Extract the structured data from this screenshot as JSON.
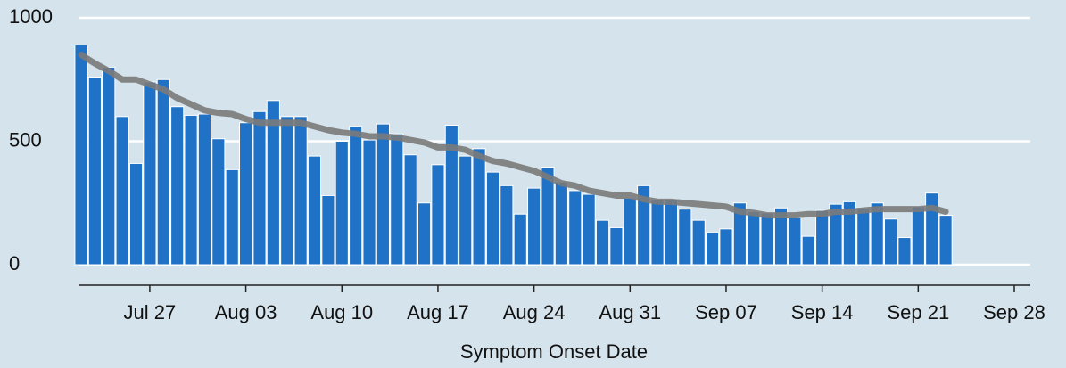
{
  "chart_data": {
    "type": "bar",
    "xlabel": "Symptom Onset Date",
    "x": [
      "Jul 22",
      "Jul 23",
      "Jul 24",
      "Jul 25",
      "Jul 26",
      "Jul 27",
      "Jul 28",
      "Jul 29",
      "Jul 30",
      "Jul 31",
      "Aug 01",
      "Aug 02",
      "Aug 03",
      "Aug 04",
      "Aug 05",
      "Aug 06",
      "Aug 07",
      "Aug 08",
      "Aug 09",
      "Aug 10",
      "Aug 11",
      "Aug 12",
      "Aug 13",
      "Aug 14",
      "Aug 15",
      "Aug 16",
      "Aug 17",
      "Aug 18",
      "Aug 19",
      "Aug 20",
      "Aug 21",
      "Aug 22",
      "Aug 23",
      "Aug 24",
      "Aug 25",
      "Aug 26",
      "Aug 27",
      "Aug 28",
      "Aug 29",
      "Aug 30",
      "Aug 31",
      "Sep 01",
      "Sep 02",
      "Sep 03",
      "Sep 04",
      "Sep 05",
      "Sep 06",
      "Sep 07",
      "Sep 08",
      "Sep 09",
      "Sep 10",
      "Sep 11",
      "Sep 12",
      "Sep 13",
      "Sep 14",
      "Sep 15",
      "Sep 16",
      "Sep 17",
      "Sep 18",
      "Sep 19",
      "Sep 20",
      "Sep 21",
      "Sep 22",
      "Sep 23"
    ],
    "series": [
      {
        "type": "bar",
        "color": "#1f72c6",
        "values": [
          890,
          760,
          800,
          600,
          410,
          740,
          750,
          640,
          605,
          610,
          510,
          385,
          575,
          620,
          665,
          600,
          600,
          440,
          280,
          500,
          560,
          505,
          570,
          530,
          445,
          250,
          405,
          565,
          440,
          470,
          375,
          320,
          205,
          310,
          395,
          335,
          300,
          285,
          180,
          150,
          270,
          320,
          265,
          265,
          225,
          180,
          130,
          145,
          250,
          215,
          210,
          230,
          190,
          115,
          220,
          245,
          255,
          230,
          250,
          185,
          110,
          235,
          290,
          200
        ]
      },
      {
        "type": "line",
        "color": "#7a7a7a",
        "values": [
          850,
          815,
          785,
          750,
          750,
          730,
          710,
          675,
          650,
          625,
          615,
          610,
          590,
          575,
          575,
          575,
          575,
          560,
          545,
          535,
          530,
          520,
          520,
          515,
          505,
          495,
          475,
          475,
          465,
          440,
          420,
          410,
          395,
          380,
          355,
          330,
          320,
          300,
          290,
          280,
          280,
          265,
          255,
          255,
          250,
          245,
          240,
          235,
          215,
          210,
          200,
          200,
          200,
          205,
          205,
          215,
          215,
          220,
          225,
          225,
          225,
          225,
          230,
          215
        ]
      }
    ],
    "xlim": [
      "Jul 22",
      "Sep 28"
    ],
    "xticks": [
      "Jul 27",
      "Aug 03",
      "Aug 10",
      "Aug 17",
      "Aug 24",
      "Aug 31",
      "Sep 07",
      "Sep 14",
      "Sep 21",
      "Sep 28"
    ],
    "ylim": [
      0,
      1000
    ],
    "yticks": [
      0,
      500,
      1000
    ],
    "grid": true
  }
}
